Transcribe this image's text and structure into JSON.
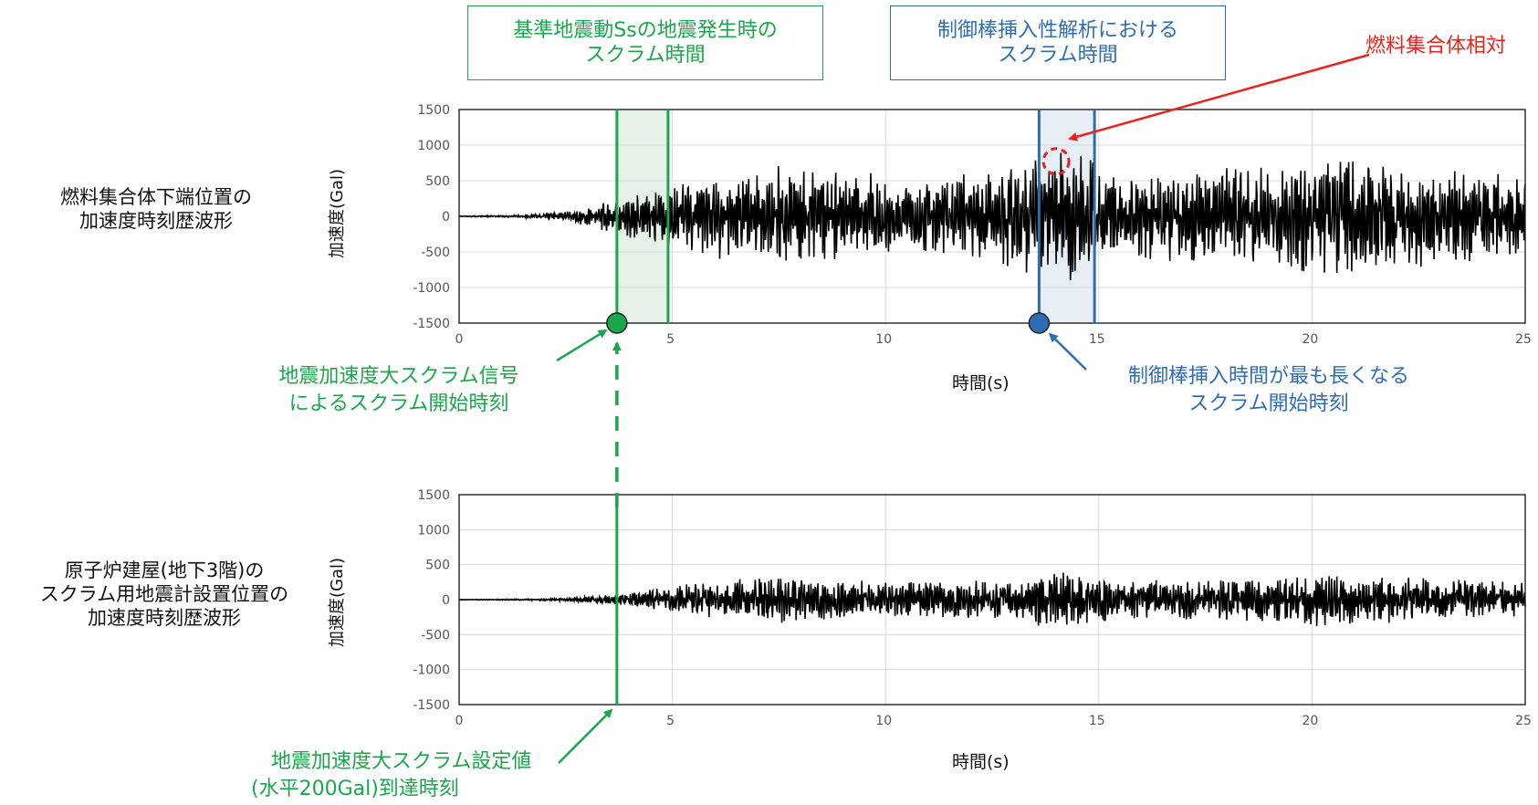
{
  "header": {
    "green_box": [
      "基準地震動Ssの地震発生時の",
      "スクラム時間"
    ],
    "blue_box": [
      "制御棒挿入性解析における",
      "スクラム時間"
    ],
    "red_label": "燃料集合体相対"
  },
  "side_labels": {
    "top": [
      "燃料集合体下端位置の",
      "加速度時刻歴波形"
    ],
    "bottom": [
      "原子炉建屋(地下3階)の",
      "スクラム用地震計設置位置の",
      "加速度時刻歴波形"
    ]
  },
  "annotations": {
    "green_top": [
      "地震加速度大スクラム信号",
      "によるスクラム開始時刻"
    ],
    "blue_top": [
      "制御棒挿入時間が最も長くなる",
      "スクラム開始時刻"
    ],
    "green_bottom": [
      "地震加速度大スクラム設定値",
      "(水平200Gal)到達時刻"
    ]
  },
  "colors": {
    "green": "#1aa64a",
    "blue": "#2e6db4",
    "red": "#e8231b",
    "trace": "#000000",
    "grid": "#d8d8d8",
    "green_fill": "#e6f2e8",
    "blue_fill": "#e8eef6"
  },
  "chart_data": [
    {
      "type": "line",
      "name": "top",
      "xlabel": "時間(s)",
      "ylabel": "加速度(Gal)",
      "xlim": [
        0,
        25
      ],
      "ylim": [
        -1500,
        1500
      ],
      "xticks": [
        0,
        5,
        10,
        15,
        20,
        25
      ],
      "yticks": [
        1500,
        1000,
        500,
        0,
        -500,
        -1000,
        -1500
      ],
      "xtick_labels": [
        "0",
        "5",
        "10",
        "15",
        "20",
        "25"
      ],
      "ytick_labels": [
        "1500",
        "1000",
        "500",
        "0",
        "-500",
        "-1000",
        "-1500"
      ],
      "grid": true,
      "green_band": [
        3.7,
        4.9
      ],
      "blue_band": [
        13.6,
        14.9
      ],
      "green_marker_x": 3.7,
      "blue_marker_x": 13.6,
      "peak_highlight": {
        "x": 14.0,
        "y": 900
      },
      "envelope": [
        {
          "x": 0,
          "amp": 5
        },
        {
          "x": 1.5,
          "amp": 20
        },
        {
          "x": 2.5,
          "amp": 70
        },
        {
          "x": 3.5,
          "amp": 230
        },
        {
          "x": 4.5,
          "amp": 420
        },
        {
          "x": 6,
          "amp": 600
        },
        {
          "x": 7.5,
          "amp": 720
        },
        {
          "x": 9,
          "amp": 650
        },
        {
          "x": 11,
          "amp": 560
        },
        {
          "x": 12.5,
          "amp": 620
        },
        {
          "x": 13.8,
          "amp": 1000
        },
        {
          "x": 14.6,
          "amp": 1000
        },
        {
          "x": 15.5,
          "amp": 620
        },
        {
          "x": 18,
          "amp": 700
        },
        {
          "x": 20,
          "amp": 850
        },
        {
          "x": 22.5,
          "amp": 750
        },
        {
          "x": 25,
          "amp": 550
        }
      ]
    },
    {
      "type": "line",
      "name": "bottom",
      "xlabel": "時間(s)",
      "ylabel": "加速度(Gal)",
      "xlim": [
        0,
        25
      ],
      "ylim": [
        -1500,
        1500
      ],
      "xticks": [
        0,
        5,
        10,
        15,
        20,
        25
      ],
      "yticks": [
        1500,
        1000,
        500,
        0,
        -500,
        -1000,
        -1500
      ],
      "xtick_labels": [
        "0",
        "5",
        "10",
        "15",
        "20",
        "25"
      ],
      "ytick_labels": [
        "1500",
        "1000",
        "500",
        "0",
        "-500",
        "-1000",
        "-1500"
      ],
      "grid": true,
      "green_line_x": 3.7,
      "envelope": [
        {
          "x": 0,
          "amp": 3
        },
        {
          "x": 1.5,
          "amp": 10
        },
        {
          "x": 2.5,
          "amp": 25
        },
        {
          "x": 3.5,
          "amp": 70
        },
        {
          "x": 4.5,
          "amp": 150
        },
        {
          "x": 6,
          "amp": 280
        },
        {
          "x": 7.5,
          "amp": 350
        },
        {
          "x": 9,
          "amp": 280
        },
        {
          "x": 11,
          "amp": 260
        },
        {
          "x": 13,
          "amp": 300
        },
        {
          "x": 14,
          "amp": 450
        },
        {
          "x": 15.5,
          "amp": 280
        },
        {
          "x": 18,
          "amp": 330
        },
        {
          "x": 20,
          "amp": 380
        },
        {
          "x": 22.5,
          "amp": 320
        },
        {
          "x": 25,
          "amp": 250
        }
      ]
    }
  ]
}
